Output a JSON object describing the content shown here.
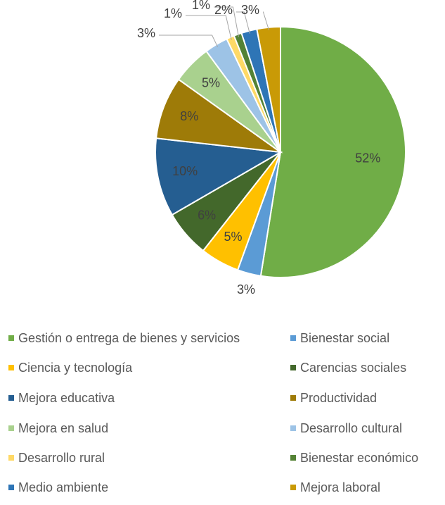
{
  "chart_data": {
    "type": "pie",
    "categories": [
      "Gestión o entrega de bienes y servicios",
      "Bienestar social",
      "Ciencia y tecnología",
      "Carencias sociales",
      "Mejora educativa",
      "Productividad",
      "Mejora en salud",
      "Desarrollo cultural",
      "Desarrollo rural",
      "Bienestar económico",
      "Medio ambiente",
      "Mejora laboral"
    ],
    "values": [
      52,
      3,
      5,
      6,
      10,
      8,
      5,
      3,
      1,
      1,
      2,
      3
    ],
    "value_labels": [
      "52%",
      "3%",
      "5%",
      "6%",
      "10%",
      "8%",
      "5%",
      "3%",
      "1%",
      "1%",
      "2%",
      "3%"
    ],
    "colors": [
      "#70ad47",
      "#5b9bd5",
      "#ffc000",
      "#43682b",
      "#255e91",
      "#9e7b08",
      "#a9d18e",
      "#9dc3e6",
      "#ffd966",
      "#548235",
      "#2e75b6",
      "#c99a06"
    ],
    "legend": "bottom"
  }
}
